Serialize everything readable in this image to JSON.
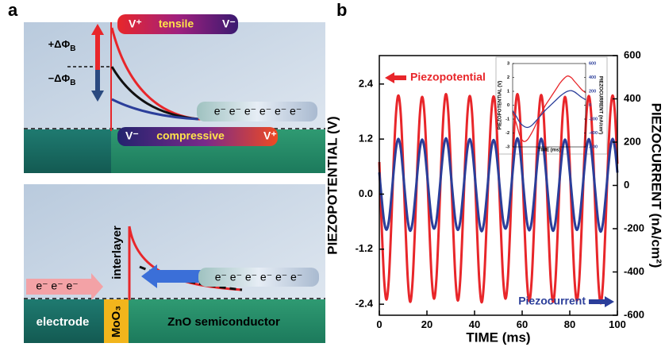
{
  "panel_a": {
    "label": "a",
    "top": {
      "tensile_tube": {
        "left": "V⁺",
        "text": "tensile",
        "right": "V⁻"
      },
      "barrier_up": {
        "main": "+ΔΦ",
        "sub": "B"
      },
      "barrier_down": {
        "main": "−ΔΦ",
        "sub": "B"
      },
      "electrons": "e⁻ e⁻ e⁻ e⁻ e⁻ e⁻",
      "compressive_tube": {
        "left": "V⁻",
        "text": "compressive",
        "right": "V⁺"
      }
    },
    "bottom": {
      "interlayer": "interlayer",
      "electrons_left": "e⁻ e⁻ e⁻",
      "electrons_right": "e⁻ e⁻ e⁻ e⁻ e⁻ e⁻",
      "electrode": "electrode",
      "moo3": "MoO₃",
      "zno": "ZnO semiconductor"
    }
  },
  "panel_b": {
    "label": "b"
  },
  "chart_data": [
    {
      "type": "line",
      "xlabel": "TIME (ms)",
      "ylabel": "PIEZOPOTENTIAL (V)",
      "y2label": "PIEZOCURRENT (nA/cm²)",
      "x": [
        0,
        1,
        2,
        3,
        4,
        5,
        6,
        7,
        8,
        9,
        10,
        11,
        12,
        13,
        14,
        15,
        16,
        17,
        18,
        19,
        20,
        21,
        22,
        23,
        24,
        25,
        26,
        27,
        28,
        29,
        30,
        31,
        32,
        33,
        34,
        35,
        36,
        37,
        38,
        39,
        40,
        41,
        42,
        43,
        44,
        45,
        46,
        47,
        48,
        49,
        50,
        51,
        52,
        53,
        54,
        55,
        56,
        57,
        58,
        59,
        60,
        61,
        62,
        63,
        64,
        65,
        66,
        67,
        68,
        69,
        70,
        71,
        72,
        73,
        74,
        75,
        76,
        77,
        78,
        79,
        80,
        81,
        82,
        83,
        84,
        85,
        86,
        87,
        88,
        89,
        90,
        91,
        92,
        93,
        94,
        95,
        96,
        97,
        98,
        99,
        100
      ],
      "xlim": [
        0,
        100
      ],
      "xticks": [
        0,
        20,
        40,
        60,
        80,
        100
      ],
      "ylim": [
        -2.64,
        3.02
      ],
      "yticks": [
        -2.4,
        -1.2,
        {
          "value": 0,
          "label": "0.0"
        },
        1.2,
        2.4
      ],
      "y2lim": [
        -600,
        600
      ],
      "y2ticks": [
        -600,
        -400,
        -200,
        0,
        200,
        400,
        600
      ],
      "series": [
        {
          "name": "Piezopotential",
          "color": "#e8262a",
          "values": [
            0.7,
            -0.7,
            -1.85,
            -2.3,
            -1.85,
            -0.7,
            0.68,
            1.75,
            2.15,
            1.75,
            0.65,
            -0.72,
            -1.88,
            -2.35,
            -1.88,
            -0.72,
            0.66,
            1.72,
            2.12,
            1.72,
            0.64,
            -0.7,
            -1.84,
            -2.28,
            -1.84,
            -0.7,
            0.68,
            1.76,
            2.18,
            1.76,
            0.66,
            -0.71,
            -1.86,
            -2.32,
            -1.86,
            -0.71,
            0.67,
            1.74,
            2.14,
            1.74,
            0.65,
            -0.73,
            -1.89,
            -2.36,
            -1.89,
            -0.73,
            0.66,
            1.73,
            2.13,
            1.73,
            0.64,
            -0.7,
            -1.84,
            -2.28,
            -1.84,
            -0.7,
            0.68,
            1.76,
            2.18,
            1.76,
            0.65,
            -0.72,
            -1.87,
            -2.33,
            -1.87,
            -0.72,
            0.68,
            1.75,
            2.16,
            1.75,
            0.65,
            -0.72,
            -1.88,
            -2.35,
            -1.88,
            -0.72,
            0.66,
            1.72,
            2.12,
            1.72,
            0.66,
            -0.71,
            -1.86,
            -2.32,
            -1.86,
            -0.71,
            0.67,
            1.74,
            2.14,
            1.74,
            0.66,
            -0.72,
            -1.9,
            -2.38,
            -1.9,
            -0.72,
            0.67,
            1.74,
            2.15,
            1.74,
            0.66
          ]
        },
        {
          "name": "Piezocurrent",
          "color": "#2b3e9a",
          "axis": "y2",
          "values": [
            60,
            -62,
            -165,
            -205,
            -165,
            -62,
            62,
            170,
            215,
            170,
            58,
            -64,
            -168,
            -210,
            -168,
            -64,
            60,
            168,
            212,
            168,
            60,
            -60,
            -162,
            -200,
            -162,
            -60,
            62,
            172,
            218,
            172,
            59,
            -62,
            -166,
            -206,
            -166,
            -62,
            61,
            169,
            214,
            169,
            58,
            -65,
            -170,
            -212,
            -170,
            -65,
            60,
            167,
            210,
            167,
            60,
            -60,
            -162,
            -200,
            -162,
            -60,
            62,
            172,
            218,
            172,
            59,
            -63,
            -167,
            -208,
            -167,
            -63,
            62,
            170,
            216,
            170,
            58,
            -64,
            -168,
            -210,
            -168,
            -64,
            60,
            168,
            212,
            168,
            59,
            -62,
            -166,
            -206,
            -166,
            -62,
            61,
            169,
            214,
            169,
            59,
            -63,
            -170,
            -214,
            -170,
            -63,
            61,
            169,
            215,
            169,
            59
          ]
        }
      ]
    },
    {
      "type": "line",
      "xlabel": "TIME (ms)",
      "ylabel": "PIEZOPOTENTIAL (V)",
      "y2label": "PIEZOCURRENT (nA/cm²)",
      "x": [
        0,
        1,
        2,
        3,
        4,
        5,
        6,
        7,
        8,
        9,
        10,
        11,
        12,
        13,
        14,
        15,
        16,
        17,
        18,
        19,
        20
      ],
      "xlim": [
        0,
        20
      ],
      "ylim": [
        -3,
        3
      ],
      "yticks": [
        -3,
        -2,
        -1,
        0,
        1,
        2,
        3
      ],
      "y2lim": [
        -600,
        600
      ],
      "y2ticks": [
        -600,
        -400,
        -200,
        0,
        200,
        400,
        600
      ],
      "series": [
        {
          "color": "#e8262a",
          "values": [
            -0.5,
            -1.3,
            -2.2,
            -2.6,
            -2.5,
            -2.1,
            -1.6,
            -1.0,
            -0.5,
            0.0,
            0.4,
            0.8,
            1.2,
            1.6,
            1.9,
            2.1,
            2.0,
            1.7,
            1.4,
            1.1,
            0.9
          ]
        },
        {
          "color": "#2b3e9a",
          "axis": "y2",
          "values": [
            -80,
            -160,
            -250,
            -300,
            -320,
            -300,
            -250,
            -190,
            -130,
            -70,
            -20,
            30,
            80,
            130,
            170,
            200,
            210,
            190,
            150,
            110,
            80
          ]
        }
      ]
    }
  ]
}
